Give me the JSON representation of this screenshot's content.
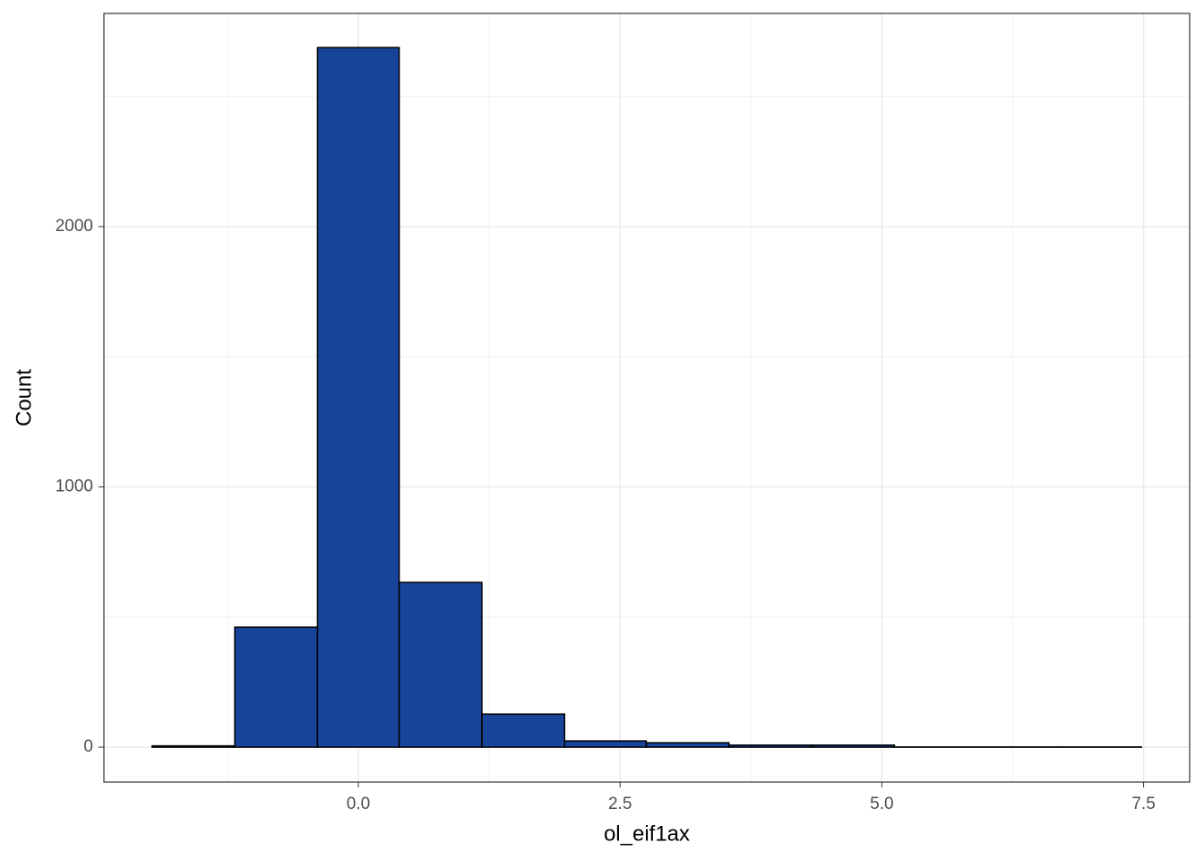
{
  "chart_data": {
    "type": "histogram",
    "x_label": "ol_eif1ax",
    "y_label": "Count",
    "bins": [
      -1.97,
      -1.18,
      -0.39,
      0.39,
      1.18,
      1.97,
      2.75,
      3.54,
      4.33,
      5.12,
      5.9,
      6.69,
      7.48
    ],
    "values": [
      5,
      461,
      2688,
      633,
      127,
      24,
      17,
      8,
      8,
      1,
      1,
      1
    ],
    "color": "#18449a",
    "xlim": [
      -2.43,
      7.94
    ],
    "ylim": [
      -134,
      2819
    ],
    "xticks": [
      {
        "value": 0,
        "label": "0.0"
      },
      {
        "value": 2.5,
        "label": "2.5"
      },
      {
        "value": 5,
        "label": "5.0"
      },
      {
        "value": 7.5,
        "label": "7.5"
      }
    ],
    "yticks": [
      0,
      1000,
      2000
    ],
    "grid": true
  }
}
